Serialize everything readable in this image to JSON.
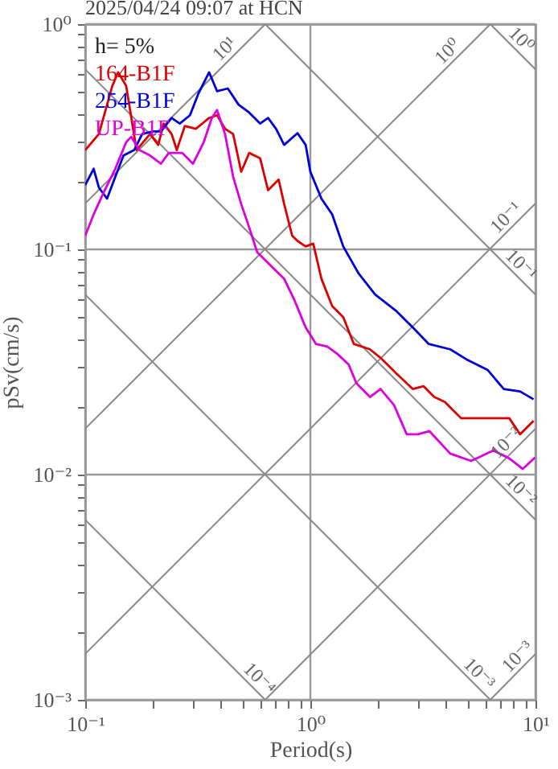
{
  "chart_data": {
    "type": "line",
    "title": "2025/04/24 09:07 at HCN",
    "xlabel": "Period(s)",
    "ylabel": "pSv(cm/s)",
    "log": "xy",
    "grid": true,
    "legend": "top left",
    "xlim": [
      0.1,
      10
    ],
    "ylim": [
      0.001,
      1
    ],
    "xticks": [
      {
        "value": 0.1,
        "label": "10⁻¹"
      },
      {
        "value": 0.2,
        "label": null
      },
      {
        "value": 0.3,
        "label": null
      },
      {
        "value": 0.4,
        "label": null
      },
      {
        "value": 0.5,
        "label": null
      },
      {
        "value": 0.6,
        "label": null
      },
      {
        "value": 0.7,
        "label": null
      },
      {
        "value": 0.8,
        "label": null
      },
      {
        "value": 0.9,
        "label": null
      },
      {
        "value": 1,
        "label": "10⁰"
      },
      {
        "value": 2,
        "label": null
      },
      {
        "value": 3,
        "label": null
      },
      {
        "value": 4,
        "label": null
      },
      {
        "value": 5,
        "label": null
      },
      {
        "value": 6,
        "label": null
      },
      {
        "value": 7,
        "label": null
      },
      {
        "value": 8,
        "label": null
      },
      {
        "value": 9,
        "label": null
      },
      {
        "value": 10,
        "label": "10¹"
      }
    ],
    "yticks": [
      {
        "value": 0.001,
        "label": "10⁻³"
      },
      {
        "value": 0.002,
        "label": null
      },
      {
        "value": 0.003,
        "label": null
      },
      {
        "value": 0.004,
        "label": null
      },
      {
        "value": 0.005,
        "label": null
      },
      {
        "value": 0.006,
        "label": null
      },
      {
        "value": 0.007,
        "label": null
      },
      {
        "value": 0.008,
        "label": null
      },
      {
        "value": 0.009,
        "label": null
      },
      {
        "value": 0.01,
        "label": "10⁻²"
      },
      {
        "value": 0.02,
        "label": null
      },
      {
        "value": 0.03,
        "label": null
      },
      {
        "value": 0.04,
        "label": null
      },
      {
        "value": 0.05,
        "label": null
      },
      {
        "value": 0.06,
        "label": null
      },
      {
        "value": 0.07,
        "label": null
      },
      {
        "value": 0.08,
        "label": null
      },
      {
        "value": 0.09,
        "label": null
      },
      {
        "value": 0.1,
        "label": "10⁻¹"
      },
      {
        "value": 0.2,
        "label": null
      },
      {
        "value": 0.3,
        "label": null
      },
      {
        "value": 0.4,
        "label": null
      },
      {
        "value": 0.5,
        "label": null
      },
      {
        "value": 0.6,
        "label": null
      },
      {
        "value": 0.7,
        "label": null
      },
      {
        "value": 0.8,
        "label": null
      },
      {
        "value": 0.9,
        "label": null
      },
      {
        "value": 1,
        "label": "10⁰"
      }
    ],
    "series": [
      {
        "type": "line",
        "color": "#888888",
        "x": [
          0.1,
          0.63
        ],
        "values": [
          0.16,
          1
        ]
      },
      {
        "type": "line",
        "color": "#888888",
        "x": [
          0.1,
          6.3
        ],
        "values": [
          0.016,
          1
        ]
      },
      {
        "type": "line",
        "color": "#888888",
        "x": [
          0.1,
          10
        ],
        "values": [
          0.0016,
          0.16
        ]
      },
      {
        "type": "line",
        "color": "#888888",
        "x": [
          0.63,
          10
        ],
        "values": [
          0.001,
          0.016
        ]
      },
      {
        "type": "line",
        "color": "#888888",
        "x": [
          6.3,
          10
        ],
        "values": [
          0.001,
          0.0016
        ]
      },
      {
        "type": "line",
        "color": "#888888",
        "x": [
          6.3,
          10
        ],
        "values": [
          1,
          0.63
        ]
      },
      {
        "type": "line",
        "color": "#888888",
        "x": [
          0.63,
          10
        ],
        "values": [
          1,
          0.063
        ]
      },
      {
        "type": "line",
        "color": "#888888",
        "x": [
          0.1,
          10
        ],
        "values": [
          0.63,
          0.0063
        ]
      },
      {
        "type": "line",
        "color": "#888888",
        "x": [
          0.1,
          6.3
        ],
        "values": [
          0.063,
          0.001
        ]
      },
      {
        "type": "line",
        "color": "#888888",
        "x": [
          0.1,
          0.63
        ],
        "values": [
          0.0063,
          0.001
        ]
      },
      {
        "type": "line",
        "name": "164-B1F",
        "color": "#dd0000",
        "x": [
          0.1,
          0.115,
          0.132,
          0.14,
          0.152,
          0.169,
          0.194,
          0.211,
          0.223,
          0.242,
          0.255,
          0.277,
          0.31,
          0.355,
          0.385,
          0.418,
          0.454,
          0.493,
          0.535,
          0.598,
          0.649,
          0.723,
          0.765,
          0.83,
          0.877,
          0.953,
          1.03,
          1.12,
          1.25,
          1.4,
          1.56,
          1.84,
          2.05,
          2.42,
          2.85,
          3.18,
          3.55,
          3.96,
          4.67,
          5.5,
          6.5,
          7.65,
          8.54,
          9.8
        ],
        "values": [
          0.276,
          0.325,
          0.532,
          0.611,
          0.532,
          0.276,
          0.325,
          0.291,
          0.362,
          0.325,
          0.276,
          0.353,
          0.343,
          0.383,
          0.394,
          0.343,
          0.325,
          0.221,
          0.268,
          0.254,
          0.183,
          0.204,
          0.159,
          0.115,
          0.109,
          0.103,
          0.106,
          0.074,
          0.056,
          0.05,
          0.038,
          0.036,
          0.033,
          0.028,
          0.024,
          0.0247,
          0.0221,
          0.021,
          0.0178,
          0.0178,
          0.0178,
          0.0178,
          0.0151,
          0.0173
        ]
      },
      {
        "type": "line",
        "name": "254-B1F",
        "color": "#0000dd",
        "x": [
          0.1,
          0.109,
          0.115,
          0.125,
          0.136,
          0.148,
          0.165,
          0.179,
          0.2,
          0.217,
          0.242,
          0.263,
          0.292,
          0.318,
          0.355,
          0.385,
          0.43,
          0.48,
          0.535,
          0.598,
          0.649,
          0.704,
          0.765,
          0.877,
          0.953,
          1.0,
          1.12,
          1.25,
          1.4,
          1.64,
          1.94,
          2.42,
          2.85,
          3.36,
          4.18,
          4.93,
          6.14,
          7.23,
          8.54,
          9.8
        ],
        "values": [
          0.193,
          0.228,
          0.188,
          0.168,
          0.21,
          0.261,
          0.276,
          0.325,
          0.334,
          0.334,
          0.383,
          0.362,
          0.394,
          0.491,
          0.611,
          0.504,
          0.518,
          0.439,
          0.405,
          0.362,
          0.383,
          0.343,
          0.291,
          0.328,
          0.291,
          0.221,
          0.168,
          0.143,
          0.103,
          0.078,
          0.063,
          0.053,
          0.045,
          0.038,
          0.036,
          0.0325,
          0.0291,
          0.024,
          0.0234,
          0.0216
        ]
      },
      {
        "type": "line",
        "name": "UP-B1F",
        "color": "#dd00dd",
        "x": [
          0.1,
          0.109,
          0.122,
          0.136,
          0.152,
          0.16,
          0.174,
          0.194,
          0.217,
          0.235,
          0.27,
          0.301,
          0.336,
          0.365,
          0.385,
          0.418,
          0.454,
          0.493,
          0.535,
          0.581,
          0.631,
          0.685,
          0.765,
          0.853,
          0.953,
          1.06,
          1.19,
          1.32,
          1.48,
          1.6,
          1.84,
          2.05,
          2.35,
          2.68,
          3.01,
          3.38,
          4.18,
          5.18,
          6.5,
          7.65,
          8.77,
          9.95
        ],
        "values": [
          0.115,
          0.143,
          0.183,
          0.228,
          0.299,
          0.316,
          0.276,
          0.261,
          0.24,
          0.268,
          0.268,
          0.24,
          0.299,
          0.383,
          0.416,
          0.325,
          0.21,
          0.159,
          0.125,
          0.097,
          0.0895,
          0.0824,
          0.074,
          0.059,
          0.045,
          0.038,
          0.037,
          0.0343,
          0.0308,
          0.0255,
          0.0221,
          0.024,
          0.0204,
          0.0151,
          0.0151,
          0.0156,
          0.0124,
          0.0115,
          0.0128,
          0.0118,
          0.0106,
          0.0119
        ]
      }
    ],
    "annotations": [
      "h= 5%",
      {
        "text": "10¹",
        "x": 0.45,
        "y": 0.72
      },
      {
        "text": "10⁰",
        "x": 4.4,
        "y": 0.7
      },
      {
        "text": "10⁰",
        "x": 8,
        "y": 0.79
      },
      {
        "text": "10⁻¹",
        "x": 8,
        "y": 0.128
      },
      {
        "text": "10⁻¹",
        "x": 8,
        "y": 0.079
      },
      {
        "text": "10⁻²",
        "x": 8,
        "y": 0.0128
      },
      {
        "text": "10⁻²",
        "x": 8,
        "y": 0.0079
      },
      {
        "text": "10⁻⁴",
        "x": 0.55,
        "y": 0.00115
      },
      {
        "text": "10⁻³",
        "x": 5.2,
        "y": 0.00121
      },
      {
        "text": "10⁻³",
        "x": 9,
        "y": 0.00144
      }
    ]
  }
}
